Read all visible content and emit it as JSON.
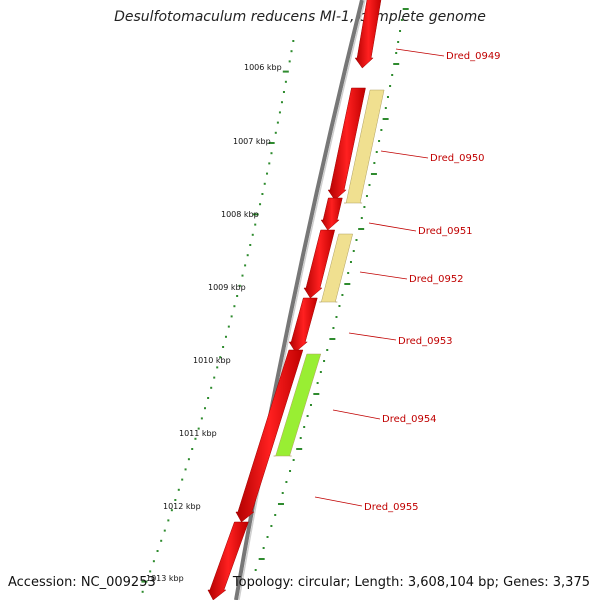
{
  "title": "Desulfotomaculum reducens MI-1, complete genome",
  "footer": {
    "accession": "Accession: NC_009253",
    "topology": "Topology: circular; Length: 3,608,104 bp; Genes: 3,375"
  },
  "ticks": [
    {
      "label": "1006 kbp"
    },
    {
      "label": "1007 kbp"
    },
    {
      "label": "1008 kbp"
    },
    {
      "label": "1009 kbp"
    },
    {
      "label": "1010 kbp"
    },
    {
      "label": "1011 kbp"
    },
    {
      "label": "1012 kbp"
    },
    {
      "label": "1013 kbp"
    }
  ],
  "genes": [
    {
      "label": "Dred_0949",
      "strand": "forward",
      "color": "#ff0000"
    },
    {
      "label": "Dred_0950",
      "strand": "forward",
      "color": "#ff0000",
      "feature_color": "#f0e090"
    },
    {
      "label": "Dred_0951",
      "strand": "forward",
      "color": "#ff0000"
    },
    {
      "label": "Dred_0952",
      "strand": "forward",
      "color": "#ff0000",
      "feature_color": "#f0e090"
    },
    {
      "label": "Dred_0953",
      "strand": "forward",
      "color": "#ff0000"
    },
    {
      "label": "Dred_0954",
      "strand": "forward",
      "color": "#ff0000",
      "feature_color": "#99ee33"
    },
    {
      "label": "Dred_0955",
      "strand": "forward",
      "color": "#ff0000"
    }
  ],
  "colors": {
    "backbone": "#888888",
    "cds": "#ff0000",
    "gene_label": "#c00000",
    "gc_track": "#2e8b2e"
  }
}
